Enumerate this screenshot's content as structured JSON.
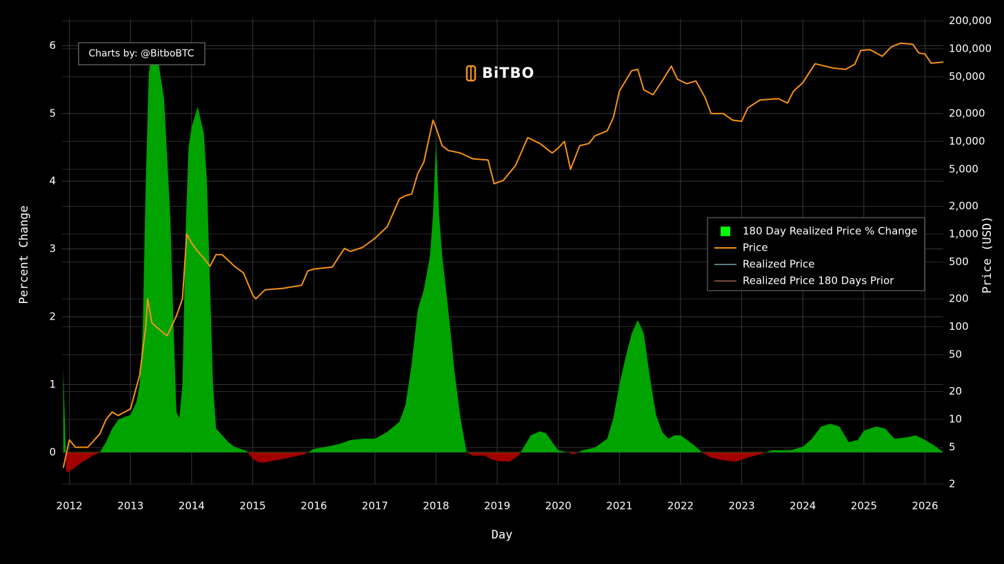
{
  "chart_data": {
    "type": "combo",
    "logo": "BiTBO",
    "annotation": "Charts by: @BitboBTC",
    "x_label": "Day",
    "y_label": "Percent Change",
    "y2_label": "Price (USD)",
    "xlim": [
      2011.88,
      2026.3
    ],
    "xticks": [
      2012,
      2013,
      2014,
      2015,
      2016,
      2017,
      2018,
      2019,
      2020,
      2021,
      2022,
      2023,
      2024,
      2025,
      2026
    ],
    "ylim": [
      -0.47,
      6.4
    ],
    "yticks": [
      0,
      1,
      2,
      3,
      4,
      5,
      6
    ],
    "y2lim": [
      2,
      212000
    ],
    "y2log": true,
    "y2ticks": [
      2,
      5,
      10,
      20,
      50,
      100,
      200,
      500,
      {
        "value": 1000,
        "label": "1,000"
      },
      {
        "value": 2000,
        "label": "2,000"
      },
      {
        "value": 5000,
        "label": "5,000"
      },
      {
        "value": 10000,
        "label": "10,000"
      },
      {
        "value": 20000,
        "label": "20,000"
      },
      {
        "value": 50000,
        "label": "50,000"
      },
      {
        "value": 100000,
        "label": "100,000"
      },
      {
        "value": 200000,
        "label": "200,000"
      }
    ],
    "grid": true,
    "legend": "right",
    "series": [
      {
        "name": "180 Day Realized Price % Change",
        "type": "area",
        "color": "#00a300",
        "legend_color": "#00ff00",
        "negative_color": "#a00000",
        "x": [
          2011.9,
          2011.95,
          2012.0,
          2012.1,
          2012.2,
          2012.3,
          2012.4,
          2012.5,
          2012.6,
          2012.7,
          2012.8,
          2012.9,
          2013.0,
          2013.1,
          2013.15,
          2013.2,
          2013.25,
          2013.3,
          2013.35,
          2013.45,
          2013.55,
          2013.65,
          2013.7,
          2013.75,
          2013.8,
          2013.85,
          2013.9,
          2013.95,
          2014.0,
          2014.1,
          2014.2,
          2014.25,
          2014.3,
          2014.35,
          2014.4,
          2014.5,
          2014.6,
          2014.7,
          2014.8,
          2014.9,
          2015.0,
          2015.1,
          2015.2,
          2015.3,
          2015.5,
          2015.7,
          2015.85,
          2016.0,
          2016.2,
          2016.4,
          2016.6,
          2016.8,
          2017.0,
          2017.2,
          2017.4,
          2017.5,
          2017.6,
          2017.7,
          2017.8,
          2017.9,
          2017.95,
          2018.0,
          2018.05,
          2018.1,
          2018.2,
          2018.3,
          2018.4,
          2018.5,
          2018.6,
          2018.8,
          2018.9,
          2019.0,
          2019.2,
          2019.35,
          2019.45,
          2019.55,
          2019.7,
          2019.8,
          2019.9,
          2020.0,
          2020.15,
          2020.25,
          2020.4,
          2020.6,
          2020.8,
          2020.9,
          2021.0,
          2021.1,
          2021.2,
          2021.3,
          2021.4,
          2021.5,
          2021.6,
          2021.7,
          2021.8,
          2021.9,
          2022.0,
          2022.2,
          2022.35,
          2022.5,
          2022.7,
          2022.9,
          2023.1,
          2023.3,
          2023.5,
          2023.8,
          2024.0,
          2024.15,
          2024.3,
          2024.45,
          2024.6,
          2024.75,
          2024.9,
          2025.0,
          2025.2,
          2025.35,
          2025.5,
          2025.7,
          2025.85,
          2026.0,
          2026.15,
          2026.3
        ],
        "values": [
          1.25,
          -0.3,
          -0.28,
          -0.22,
          -0.15,
          -0.1,
          -0.04,
          0.0,
          0.15,
          0.35,
          0.48,
          0.52,
          0.55,
          0.75,
          1.0,
          1.8,
          4.0,
          5.6,
          5.9,
          5.8,
          5.2,
          3.5,
          2.0,
          0.6,
          0.5,
          1.0,
          3.2,
          4.5,
          4.8,
          5.1,
          4.7,
          4.0,
          2.5,
          1.0,
          0.35,
          0.25,
          0.15,
          0.08,
          0.05,
          0.02,
          -0.1,
          -0.15,
          -0.15,
          -0.13,
          -0.1,
          -0.06,
          -0.03,
          0.05,
          0.08,
          0.12,
          0.18,
          0.2,
          0.2,
          0.3,
          0.45,
          0.7,
          1.3,
          2.1,
          2.4,
          2.9,
          3.5,
          4.6,
          3.5,
          2.9,
          2.1,
          1.2,
          0.5,
          0.0,
          -0.05,
          -0.05,
          -0.1,
          -0.13,
          -0.14,
          -0.05,
          0.1,
          0.25,
          0.31,
          0.28,
          0.15,
          0.03,
          0.0,
          -0.03,
          0.03,
          0.07,
          0.2,
          0.5,
          1.0,
          1.4,
          1.75,
          1.95,
          1.75,
          1.1,
          0.55,
          0.3,
          0.2,
          0.25,
          0.25,
          0.12,
          0.0,
          -0.08,
          -0.12,
          -0.14,
          -0.08,
          -0.03,
          0.03,
          0.03,
          0.08,
          0.2,
          0.38,
          0.42,
          0.38,
          0.15,
          0.18,
          0.32,
          0.38,
          0.35,
          0.2,
          0.22,
          0.25,
          0.18,
          0.1,
          0.0
        ]
      },
      {
        "name": "Price",
        "type": "line",
        "axis": "y2",
        "color": "#f7931a",
        "x": [
          2011.9,
          2012.0,
          2012.1,
          2012.3,
          2012.5,
          2012.6,
          2012.7,
          2012.8,
          2013.0,
          2013.15,
          2013.25,
          2013.28,
          2013.35,
          2013.5,
          2013.6,
          2013.75,
          2013.85,
          2013.92,
          2014.0,
          2014.1,
          2014.2,
          2014.3,
          2014.4,
          2014.5,
          2014.7,
          2014.85,
          2015.0,
          2015.05,
          2015.2,
          2015.5,
          2015.8,
          2015.9,
          2016.0,
          2016.3,
          2016.5,
          2016.6,
          2016.8,
          2017.0,
          2017.2,
          2017.4,
          2017.5,
          2017.6,
          2017.7,
          2017.8,
          2017.95,
          2018.0,
          2018.1,
          2018.2,
          2018.4,
          2018.6,
          2018.85,
          2018.95,
          2019.1,
          2019.3,
          2019.5,
          2019.7,
          2019.9,
          2020.0,
          2020.1,
          2020.2,
          2020.35,
          2020.5,
          2020.6,
          2020.8,
          2020.9,
          2021.0,
          2021.2,
          2021.3,
          2021.4,
          2021.55,
          2021.7,
          2021.85,
          2021.95,
          2022.1,
          2022.25,
          2022.4,
          2022.5,
          2022.7,
          2022.85,
          2023.0,
          2023.1,
          2023.3,
          2023.6,
          2023.75,
          2023.85,
          2024.0,
          2024.2,
          2024.5,
          2024.7,
          2024.85,
          2024.95,
          2025.1,
          2025.3,
          2025.45,
          2025.6,
          2025.8,
          2025.9,
          2026.0,
          2026.1,
          2026.3
        ],
        "values": [
          3,
          6,
          5,
          5,
          7,
          10,
          12,
          11,
          13,
          30,
          100,
          200,
          110,
          90,
          80,
          130,
          200,
          1000,
          800,
          650,
          550,
          450,
          600,
          600,
          450,
          380,
          220,
          200,
          250,
          260,
          280,
          400,
          420,
          440,
          700,
          650,
          720,
          900,
          1200,
          2400,
          2600,
          2700,
          4500,
          6000,
          17000,
          14000,
          9000,
          8000,
          7500,
          6500,
          6300,
          3500,
          3800,
          5500,
          11000,
          9500,
          7500,
          8500,
          10000,
          5000,
          9000,
          9500,
          11500,
          13000,
          18000,
          35000,
          58000,
          60000,
          36000,
          32000,
          45000,
          65000,
          47000,
          42000,
          45000,
          30000,
          20000,
          20000,
          17000,
          16500,
          23000,
          28000,
          29000,
          26000,
          35000,
          43000,
          69000,
          62000,
          60000,
          68000,
          96000,
          98000,
          83000,
          105000,
          115000,
          112000,
          90000,
          88000,
          70000,
          72000
        ]
      },
      {
        "name": "Realized Price",
        "type": "line",
        "axis": "y2",
        "color": "#5f7d86",
        "visible": false
      },
      {
        "name": "Realized Price 180 Days Prior",
        "type": "line",
        "axis": "y2",
        "color": "#7a4a3c",
        "visible": false
      }
    ]
  }
}
